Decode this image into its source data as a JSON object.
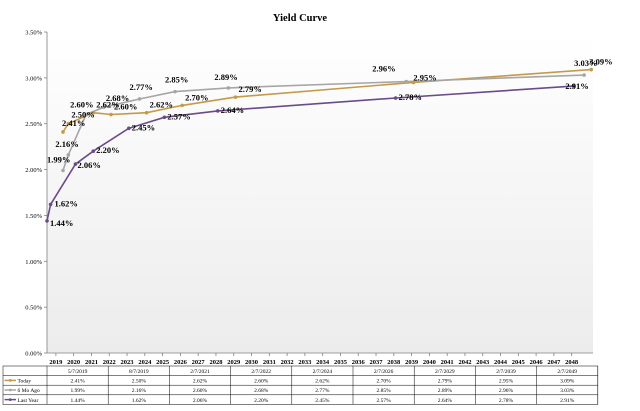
{
  "chart_data": {
    "type": "line",
    "title": "Yield Curve",
    "x": [
      2019,
      2020,
      2021,
      2022,
      2023,
      2024,
      2025,
      2026,
      2027,
      2028,
      2029,
      2030,
      2031,
      2032,
      2033,
      2034,
      2035,
      2036,
      2037,
      2038,
      2039,
      2040,
      2041,
      2042,
      2043,
      2044,
      2045,
      2046,
      2047,
      2048
    ],
    "x_tick_labels": [
      "2019",
      "2020",
      "2021",
      "2022",
      "2023",
      "2024",
      "2025",
      "2026",
      "2027",
      "2028",
      "2029",
      "2030",
      "2031",
      "2032",
      "2033",
      "2034",
      "2035",
      "2036",
      "2037",
      "2038",
      "2039",
      "2040",
      "2041",
      "2042",
      "2043",
      "2044",
      "2045",
      "2046",
      "2047",
      "2048"
    ],
    "y_tick_labels": [
      "0.00%",
      "0.50%",
      "1.00%",
      "1.50%",
      "2.00%",
      "2.50%",
      "3.00%",
      "3.50%"
    ],
    "ylim": [
      0,
      3.5
    ],
    "y_ticks": [
      0,
      0.5,
      1.0,
      1.5,
      2.0,
      2.5,
      3.0,
      3.5
    ],
    "grid": false,
    "legend": "table-below",
    "colors": {
      "Today": "#c49a4a",
      "6 Mo Ago": "#a6a6a6",
      "Last Year": "#6b4a8a"
    },
    "series": [
      {
        "name": "Today",
        "points": [
          {
            "x": 2019.4,
            "y": 2.41,
            "label": "2.41%"
          },
          {
            "x": 2019.7,
            "y": 2.5,
            "label": "2.50%"
          },
          {
            "x": 2021.1,
            "y": 2.62,
            "label": "2.62%"
          },
          {
            "x": 2022.1,
            "y": 2.6,
            "label": "2.60%"
          },
          {
            "x": 2024.1,
            "y": 2.62,
            "label": "2.62%"
          },
          {
            "x": 2026.1,
            "y": 2.7,
            "label": "2.70%"
          },
          {
            "x": 2029.1,
            "y": 2.79,
            "label": "2.79%"
          },
          {
            "x": 2039.1,
            "y": 2.95,
            "label": "2.95%"
          },
          {
            "x": 2049.1,
            "y": 3.09,
            "label": "3.09%"
          }
        ],
        "table": [
          "2.41%",
          "2.50%",
          "2.62%",
          "2.60%",
          "2.62%",
          "2.70%",
          "2.79%",
          "2.95%",
          "3.09%"
        ]
      },
      {
        "name": "6 Mo Ago",
        "points": [
          {
            "x": 2019.4,
            "y": 1.99,
            "label": "1.99%"
          },
          {
            "x": 2019.7,
            "y": 2.16,
            "label": "2.16%"
          },
          {
            "x": 2020.7,
            "y": 2.6,
            "label": "2.60%"
          },
          {
            "x": 2021.7,
            "y": 2.68,
            "label": "2.68%"
          },
          {
            "x": 2023.7,
            "y": 2.77,
            "label": "2.77%"
          },
          {
            "x": 2025.7,
            "y": 2.85,
            "label": "2.85%"
          },
          {
            "x": 2028.7,
            "y": 2.89,
            "label": "2.89%"
          },
          {
            "x": 2038.7,
            "y": 2.96,
            "label": "2.96%"
          },
          {
            "x": 2048.7,
            "y": 3.03,
            "label": "3.03%"
          }
        ],
        "table": [
          "1.99%",
          "2.16%",
          "2.60%",
          "2.68%",
          "2.77%",
          "2.85%",
          "2.89%",
          "2.96%",
          "3.03%"
        ]
      },
      {
        "name": "Last Year",
        "points": [
          {
            "x": 2018.5,
            "y": 1.44,
            "label": "1.44%"
          },
          {
            "x": 2018.7,
            "y": 1.62,
            "label": "1.62%"
          },
          {
            "x": 2020.1,
            "y": 2.06,
            "label": "2.06%"
          },
          {
            "x": 2021.1,
            "y": 2.2,
            "label": "2.20%"
          },
          {
            "x": 2023.1,
            "y": 2.45,
            "label": "2.45%"
          },
          {
            "x": 2025.1,
            "y": 2.57,
            "label": "2.57%"
          },
          {
            "x": 2028.1,
            "y": 2.64,
            "label": "2.64%"
          },
          {
            "x": 2038.1,
            "y": 2.78,
            "label": "2.78%"
          },
          {
            "x": 2048.1,
            "y": 2.91,
            "label": "2.91%"
          }
        ],
        "table": [
          "1.44%",
          "1.62%",
          "2.06%",
          "2.20%",
          "2.45%",
          "2.57%",
          "2.64%",
          "2.78%",
          "2.91%"
        ]
      }
    ],
    "table_header": [
      "5/7/2019",
      "8/7/2019",
      "2/7/2021",
      "2/7/2022",
      "2/7/2024",
      "2/7/2026",
      "2/7/2029",
      "2/7/2039",
      "2/7/2049"
    ]
  }
}
